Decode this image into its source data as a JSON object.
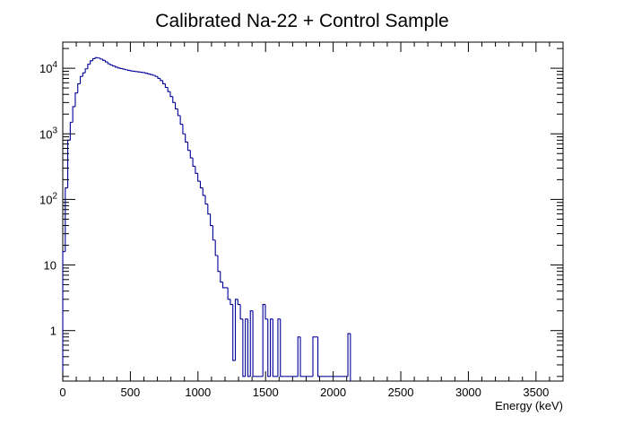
{
  "chart_data": {
    "type": "histogram",
    "title": "Calibrated Na-22 + Control Sample",
    "xlabel": "Energy (keV)",
    "ylabel": "",
    "xlim": [
      0,
      3700
    ],
    "ylim": [
      0.17,
      25000
    ],
    "yscale": "log",
    "grid": false,
    "legend": "none",
    "line_color": "#000099",
    "x_ticks": [
      0,
      500,
      1000,
      1500,
      2000,
      2500,
      3000,
      3500
    ],
    "x_tick_labels": [
      "0",
      "500",
      "1000",
      "1500",
      "2000",
      "2500",
      "3000",
      "3500"
    ],
    "y_ticks": [
      {
        "value": 1,
        "base": "1",
        "exp": ""
      },
      {
        "value": 10,
        "base": "10",
        "exp": ""
      },
      {
        "value": 100,
        "base": "10",
        "exp": "2"
      },
      {
        "value": 1000,
        "base": "10",
        "exp": "3"
      },
      {
        "value": 10000,
        "base": "10",
        "exp": "4"
      }
    ],
    "bin_width": 18.5,
    "bins": [
      [
        0,
        16
      ],
      [
        18.5,
        150
      ],
      [
        37,
        800
      ],
      [
        55.5,
        1500
      ],
      [
        74,
        2600
      ],
      [
        92.5,
        4200
      ],
      [
        111,
        5800
      ],
      [
        129.5,
        7500
      ],
      [
        148,
        8500
      ],
      [
        166.5,
        9800
      ],
      [
        185,
        11500
      ],
      [
        203.5,
        13000
      ],
      [
        222,
        14000
      ],
      [
        240.5,
        14500
      ],
      [
        259,
        14300
      ],
      [
        277.5,
        13800
      ],
      [
        296,
        13200
      ],
      [
        314.5,
        12500
      ],
      [
        333,
        11700
      ],
      [
        351.5,
        11200
      ],
      [
        370,
        10800
      ],
      [
        388.5,
        10400
      ],
      [
        407,
        10100
      ],
      [
        425.5,
        9900
      ],
      [
        444,
        9700
      ],
      [
        462.5,
        9500
      ],
      [
        481,
        9300
      ],
      [
        499.5,
        9100
      ],
      [
        518,
        9000
      ],
      [
        536.5,
        8900
      ],
      [
        555,
        8800
      ],
      [
        573.5,
        8700
      ],
      [
        592,
        8600
      ],
      [
        610.5,
        8400
      ],
      [
        629,
        8200
      ],
      [
        647.5,
        8000
      ],
      [
        666,
        7800
      ],
      [
        684.5,
        7500
      ],
      [
        703,
        7000
      ],
      [
        721.5,
        6500
      ],
      [
        740,
        5800
      ],
      [
        758.5,
        5100
      ],
      [
        777,
        4400
      ],
      [
        795.5,
        3700
      ],
      [
        814,
        3000
      ],
      [
        832.5,
        2400
      ],
      [
        851,
        1900
      ],
      [
        869.5,
        1400
      ],
      [
        888,
        1000
      ],
      [
        906.5,
        750
      ],
      [
        925,
        560
      ],
      [
        943.5,
        430
      ],
      [
        962,
        320
      ],
      [
        980.5,
        250
      ],
      [
        999,
        190
      ],
      [
        1017.5,
        150
      ],
      [
        1036,
        115
      ],
      [
        1054.5,
        85
      ],
      [
        1073,
        60
      ],
      [
        1091.5,
        40
      ],
      [
        1110,
        24
      ],
      [
        1128.5,
        14
      ],
      [
        1147,
        8
      ],
      [
        1165.5,
        5.5
      ],
      [
        1184,
        4.5
      ],
      [
        1202.5,
        4.5
      ],
      [
        1221,
        3
      ],
      [
        1239.5,
        2.5
      ],
      [
        1258,
        0.35
      ],
      [
        1276.5,
        3
      ],
      [
        1295,
        2.5
      ],
      [
        1313.5,
        1.5
      ],
      [
        1332,
        0.2
      ],
      [
        1350.5,
        1.5
      ],
      [
        1369,
        0.2
      ],
      [
        1387.5,
        2
      ],
      [
        1406,
        0.2
      ],
      [
        1424.5,
        0.2
      ],
      [
        1443,
        0.2
      ],
      [
        1461.5,
        0.2
      ],
      [
        1480,
        2.5
      ],
      [
        1498.5,
        1.5
      ],
      [
        1517,
        0.2
      ],
      [
        1535.5,
        1.5
      ],
      [
        1554,
        0.2
      ],
      [
        1572.5,
        0.2
      ],
      [
        1591,
        1.5
      ],
      [
        1609.5,
        0.2
      ],
      [
        1628,
        0.2
      ],
      [
        1646.5,
        0.2
      ],
      [
        1665,
        0.2
      ],
      [
        1683.5,
        0.2
      ],
      [
        1702,
        0.2
      ],
      [
        1720.5,
        0.2
      ],
      [
        1739,
        0.8
      ],
      [
        1757.5,
        0.2
      ],
      [
        1776,
        0.2
      ],
      [
        1794.5,
        0.2
      ],
      [
        1813,
        0.2
      ],
      [
        1831.5,
        0.2
      ],
      [
        1850,
        0.8
      ],
      [
        1868.5,
        0.8
      ],
      [
        1887,
        0.2
      ],
      [
        1905.5,
        0.2
      ],
      [
        1924,
        0.2
      ],
      [
        1942.5,
        0.2
      ],
      [
        1961,
        0.2
      ],
      [
        1979.5,
        0.2
      ],
      [
        1998,
        0.2
      ],
      [
        2016.5,
        0.2
      ],
      [
        2035,
        0.2
      ],
      [
        2053.5,
        0.2
      ],
      [
        2072,
        0.2
      ],
      [
        2090.5,
        0.2
      ],
      [
        2109,
        0.9
      ]
    ]
  }
}
